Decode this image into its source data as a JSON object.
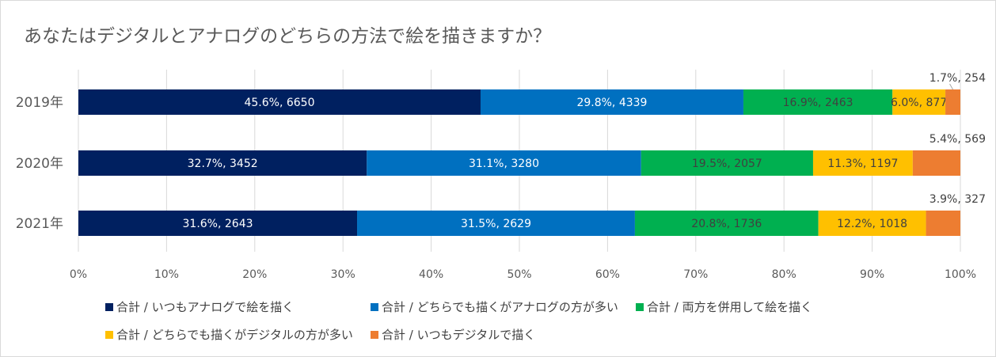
{
  "chart_data": {
    "type": "bar",
    "orientation": "horizontal",
    "stacked": true,
    "title": "あなたはデジタルとアナログのどちらの方法で絵を描きますか？",
    "categories": [
      "2019年",
      "2020年",
      "2021年"
    ],
    "xlim": [
      0,
      100
    ],
    "x_ticks": [
      "0%",
      "10%",
      "20%",
      "30%",
      "40%",
      "50%",
      "60%",
      "70%",
      "80%",
      "90%",
      "100%"
    ],
    "grid": true,
    "legend_position": "bottom",
    "series": [
      {
        "name": "合計 / いつもアナログで絵を描く",
        "color": "#002060",
        "label_color": "#ffffff",
        "values": [
          45.6,
          32.7,
          31.6
        ],
        "labels": [
          "45.6%, 6650",
          "32.7%, 3452",
          "31.6%, 2643"
        ]
      },
      {
        "name": "合計 / どちらでも描くがアナログの方が多い",
        "color": "#0070c0",
        "label_color": "#ffffff",
        "values": [
          29.8,
          31.1,
          31.5
        ],
        "labels": [
          "29.8%, 4339",
          "31.1%, 3280",
          "31.5%, 2629"
        ]
      },
      {
        "name": "合計 / 両方を併用して絵を描く",
        "color": "#00b050",
        "label_color": "#404040",
        "values": [
          16.9,
          19.5,
          20.8
        ],
        "labels": [
          "16.9%, 2463",
          "19.5%, 2057",
          "20.8%, 1736"
        ]
      },
      {
        "name": "合計 / どちらでも描くがデジタルの方が多い",
        "color": "#ffc000",
        "label_color": "#404040",
        "values": [
          6.0,
          11.3,
          12.2
        ],
        "labels": [
          "6.0%, 877",
          "11.3%, 1197",
          "12.2%, 1018"
        ]
      },
      {
        "name": "合計 / いつもデジタルで描く",
        "color": "#ed7d31",
        "label_color": "#404040",
        "values": [
          1.7,
          5.4,
          3.9
        ],
        "labels": [
          "1.7%, 254",
          "5.4%, 569",
          "3.9%, 327"
        ]
      }
    ]
  }
}
